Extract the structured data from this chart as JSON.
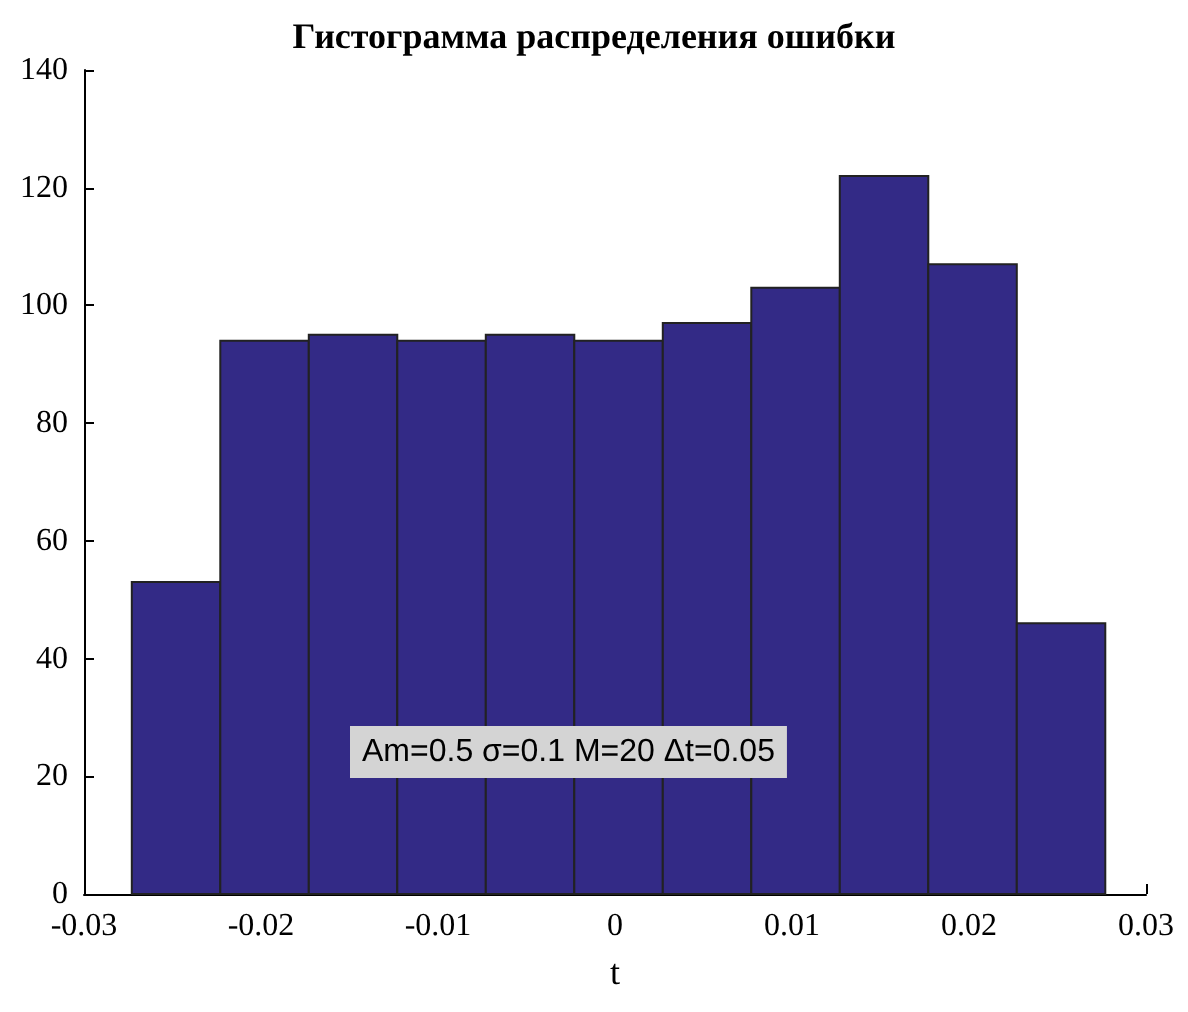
{
  "chart_data": {
    "type": "histogram",
    "title": "Гистограмма распределения ошибки",
    "xlabel": "t",
    "bins": [
      -0.0273,
      -0.0223,
      -0.0173,
      -0.0123,
      -0.0073,
      -0.0023,
      0.0027,
      0.0077,
      0.0127,
      0.0177,
      0.0227,
      0.0277
    ],
    "values": [
      53,
      94,
      95,
      94,
      95,
      94,
      97,
      103,
      122,
      107,
      46
    ],
    "color": "#332a86",
    "xlim": [
      -0.03,
      0.03
    ],
    "xticks": [
      -0.03,
      -0.02,
      -0.01,
      0,
      0.01,
      0.02,
      0.03
    ],
    "ylim": [
      0,
      140
    ],
    "yticks": [
      0,
      20,
      40,
      60,
      80,
      100,
      120,
      140
    ],
    "grid": false,
    "annotations": [
      "Am=0.5 σ=0.1 M=20 Δt=0.05"
    ]
  }
}
